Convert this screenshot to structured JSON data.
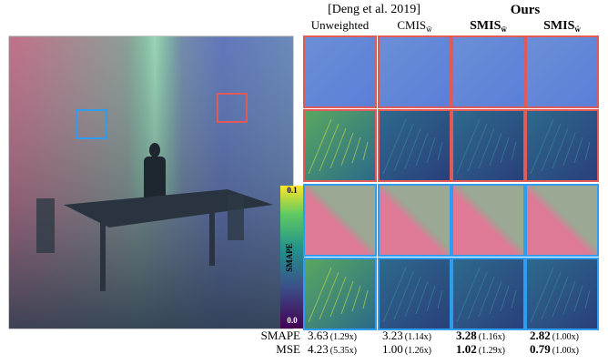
{
  "header": {
    "group_left": "[Deng et al. 2019]",
    "group_right": "Ours"
  },
  "columns": [
    {
      "name": "Unweighted"
    },
    {
      "name": "CMIS",
      "subscript": "w̄"
    },
    {
      "name": "SMIS",
      "subscript": "w̄"
    },
    {
      "name": "SMIS",
      "subscript": "ŵ"
    }
  ],
  "colorbar": {
    "max": "0.1",
    "min": "0.0",
    "label": "SMAPE"
  },
  "metrics": [
    {
      "label": "SMAPE",
      "cells": [
        {
          "value": "3.63",
          "ratio": "(1.29x)"
        },
        {
          "value": "3.23",
          "ratio": "(1.14x)"
        },
        {
          "value": "3.28",
          "ratio": "(1.16x)"
        },
        {
          "value": "2.82",
          "ratio": "(1.00x)"
        }
      ]
    },
    {
      "label": "MSE",
      "cells": [
        {
          "value": "4.23",
          "ratio": "(5.35x)"
        },
        {
          "value": "1.00",
          "ratio": "(1.26x)"
        },
        {
          "value": "1.02",
          "ratio": "(1.29x)"
        },
        {
          "value": "0.79",
          "ratio": "(1.00x)"
        }
      ]
    }
  ]
}
